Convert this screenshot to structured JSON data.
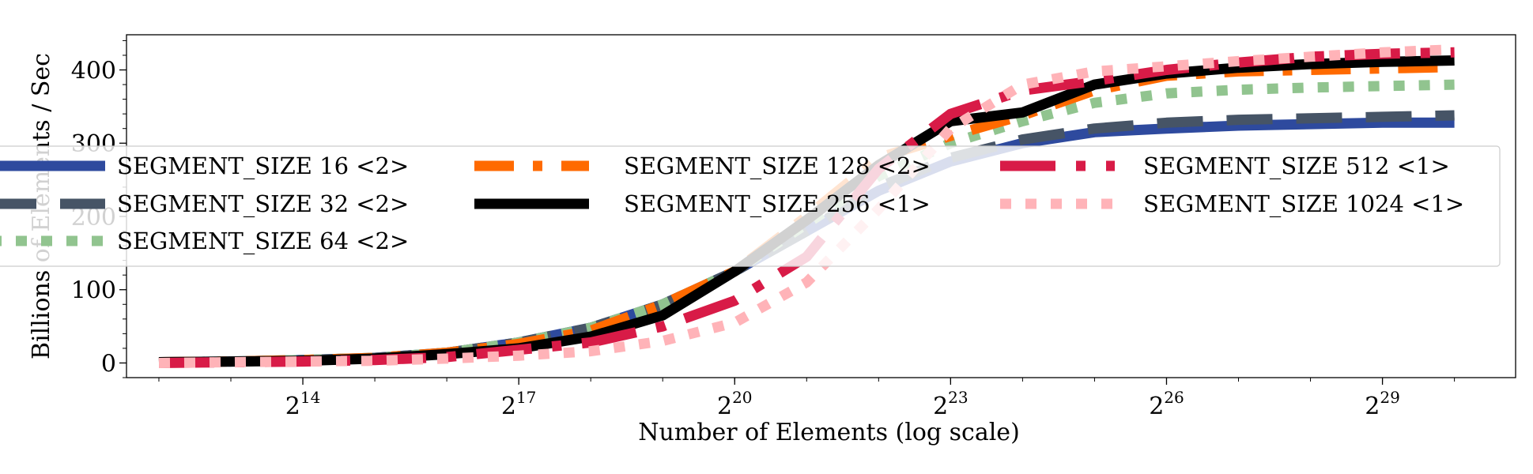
{
  "chart_data": {
    "type": "line",
    "title": "",
    "xlabel": "Number of Elements (log scale)",
    "ylabel": "Billions of Elements / Sec",
    "x_scale": "log2",
    "x_exponents": [
      12,
      13,
      14,
      15,
      16,
      17,
      18,
      19,
      20,
      21,
      22,
      23,
      24,
      25,
      26,
      27,
      28,
      29,
      30
    ],
    "xlim_exponent": [
      11.55,
      30.85
    ],
    "ylim": [
      -20,
      448
    ],
    "x_ticks": [
      {
        "base": "2",
        "exp": "14",
        "value": 14
      },
      {
        "base": "2",
        "exp": "17",
        "value": 17
      },
      {
        "base": "2",
        "exp": "20",
        "value": 20
      },
      {
        "base": "2",
        "exp": "23",
        "value": 23
      },
      {
        "base": "2",
        "exp": "26",
        "value": 26
      },
      {
        "base": "2",
        "exp": "29",
        "value": 29
      }
    ],
    "y_ticks": [
      {
        "label": "0",
        "value": 0
      },
      {
        "label": "100",
        "value": 100
      },
      {
        "label": "200",
        "value": 200
      },
      {
        "label": "300",
        "value": 300
      },
      {
        "label": "400",
        "value": 400
      }
    ],
    "grid": false,
    "legend_placement": "center",
    "legend_columns": 3,
    "series": [
      {
        "name": "SEGMENT_SIZE 16 <2>",
        "color": "#2e4a9e",
        "style": "solid",
        "values": [
          1,
          2,
          4,
          7,
          14,
          28,
          48,
          80,
          125,
          180,
          235,
          275,
          300,
          315,
          320,
          324,
          326,
          328,
          328
        ]
      },
      {
        "name": "SEGMENT_SIZE 32 <2>",
        "color": "#465466",
        "style": "dashed",
        "values": [
          1,
          2,
          4,
          7,
          14,
          28,
          48,
          80,
          125,
          180,
          240,
          280,
          305,
          320,
          328,
          332,
          334,
          336,
          338
        ]
      },
      {
        "name": "SEGMENT_SIZE 64 <2>",
        "color": "#91c48f",
        "style": "dotted",
        "values": [
          1,
          2,
          4,
          7,
          14,
          28,
          48,
          80,
          125,
          190,
          255,
          300,
          330,
          355,
          368,
          373,
          376,
          378,
          380
        ]
      },
      {
        "name": "SEGMENT_SIZE 128 <2>",
        "color": "#ff6a00",
        "style": "dashdot",
        "values": [
          1,
          2,
          4,
          7,
          14,
          26,
          44,
          80,
          125,
          200,
          280,
          310,
          338,
          372,
          392,
          398,
          400,
          402,
          404
        ]
      },
      {
        "name": "SEGMENT_SIZE 256 <1>",
        "color": "#000000",
        "style": "solid",
        "values": [
          1,
          2,
          3,
          6,
          12,
          20,
          36,
          65,
          125,
          195,
          270,
          330,
          342,
          380,
          395,
          403,
          408,
          411,
          413
        ]
      },
      {
        "name": "SEGMENT_SIZE 512 <1>",
        "color": "#d81b47",
        "style": "longdash",
        "values": [
          0,
          1,
          2,
          4,
          8,
          18,
          28,
          50,
          85,
          145,
          265,
          340,
          372,
          385,
          400,
          410,
          418,
          422,
          424
        ]
      },
      {
        "name": "SEGMENT_SIZE 1024 <1>",
        "color": "#ffb3b8",
        "style": "dotted",
        "values": [
          0,
          1,
          2,
          3,
          6,
          10,
          16,
          30,
          55,
          110,
          210,
          320,
          380,
          398,
          405,
          412,
          418,
          424,
          428
        ]
      }
    ]
  }
}
